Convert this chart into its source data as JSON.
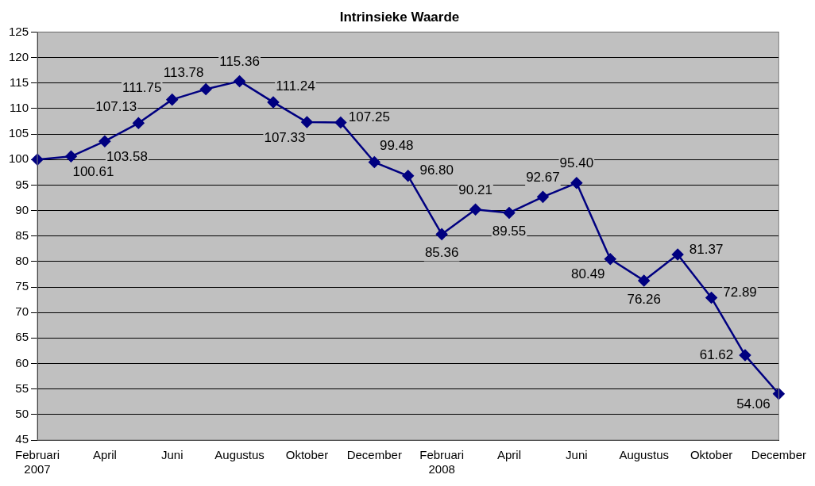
{
  "chart_data": {
    "type": "line",
    "title": "Intrinsieke Waarde",
    "categories": [
      "Februari 2007",
      null,
      "April",
      null,
      "Juni",
      null,
      "Augustus",
      null,
      "Oktober",
      null,
      "December",
      null,
      "Februari 2008",
      null,
      "April",
      null,
      "Juni",
      null,
      "Augustus",
      null,
      "Oktober",
      null,
      "December"
    ],
    "series": [
      {
        "color": "#000080",
        "values": [
          100,
          100.61,
          103.58,
          107.13,
          111.75,
          113.78,
          115.36,
          111.24,
          107.33,
          107.25,
          99.48,
          96.8,
          85.36,
          90.21,
          89.55,
          92.67,
          95.4,
          80.49,
          76.26,
          81.37,
          72.89,
          61.62,
          54.06
        ],
        "value_labels": [
          null,
          "100.61",
          "103.58",
          "107.13",
          "111.75",
          "113.78",
          "115.36",
          "111.24",
          "107.33",
          "107.25",
          "99.48",
          "96.80",
          "85.36",
          "90.21",
          "89.55",
          "92.67",
          "95.40",
          "80.49",
          "76.26",
          "81.37",
          "72.89",
          "61.62",
          "54.06"
        ]
      }
    ],
    "ylim": [
      45,
      125
    ],
    "yticks": [
      45,
      50,
      55,
      60,
      65,
      70,
      75,
      80,
      85,
      90,
      95,
      100,
      105,
      110,
      115,
      120,
      125
    ],
    "grid": "y",
    "legend": false,
    "marker": "diamond",
    "line_style": "solid"
  }
}
